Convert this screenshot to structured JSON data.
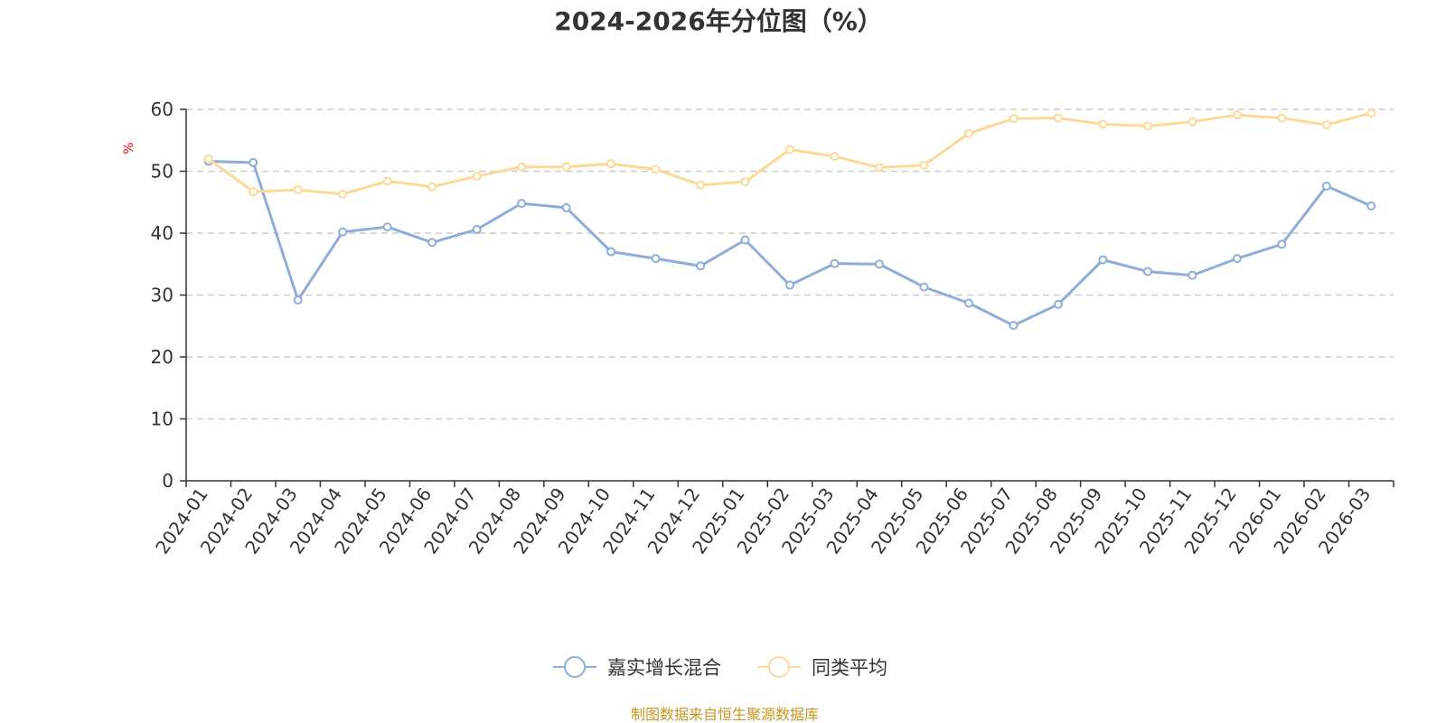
{
  "chart_data": {
    "type": "line",
    "title": "2024-2026年分位图（%）",
    "ylabel": "%",
    "ylim": [
      0,
      60
    ],
    "yticks": [
      0,
      10,
      20,
      30,
      40,
      50,
      60
    ],
    "grid": true,
    "legend_position": "bottom-center",
    "categories": [
      "2024-01",
      "2024-02",
      "2024-03",
      "2024-04",
      "2024-05",
      "2024-06",
      "2024-07",
      "2024-08",
      "2024-09",
      "2024-10",
      "2024-11",
      "2024-12",
      "2025-01",
      "2025-02",
      "2025-03",
      "2025-04",
      "2025-05",
      "2025-06",
      "2025-07",
      "2025-08",
      "2025-09",
      "2025-10",
      "2025-11",
      "2025-12",
      "2026-01",
      "2026-02",
      "2026-03"
    ],
    "series": [
      {
        "name": "嘉实增长混合",
        "color": "#8eadd8",
        "values": [
          51.6,
          51.4,
          29.2,
          40.2,
          41.0,
          38.5,
          40.6,
          44.8,
          44.1,
          37.0,
          35.9,
          34.7,
          38.9,
          31.6,
          35.1,
          35.0,
          31.3,
          28.7,
          25.1,
          28.5,
          35.7,
          33.8,
          33.2,
          35.9,
          38.2,
          47.6,
          44.4
        ]
      },
      {
        "name": "同类平均",
        "color": "#fcd997",
        "values": [
          52.0,
          46.7,
          47.0,
          46.3,
          48.4,
          47.5,
          49.2,
          50.7,
          50.7,
          51.2,
          50.3,
          47.8,
          48.3,
          53.5,
          52.4,
          50.6,
          51.0,
          56.1,
          58.5,
          58.6,
          57.6,
          57.3,
          58.0,
          59.1,
          58.6,
          57.5,
          59.4
        ]
      }
    ]
  },
  "source_text": "制图数据来自恒生聚源数据库",
  "colors": {
    "axis": "#333333",
    "grid": "#cccccc",
    "ylabel": "#ff0000",
    "source": "#c8961e"
  }
}
